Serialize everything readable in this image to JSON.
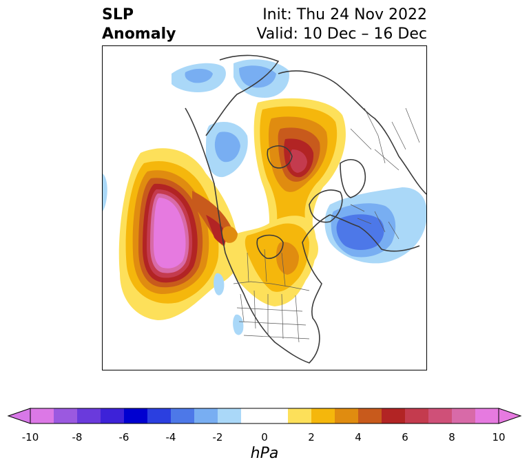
{
  "header": {
    "title_line1": "SLP",
    "title_line2": "Anomaly",
    "init_text": "Init: Thu 24 Nov 2022",
    "valid_text": "Valid: 10 Dec – 16 Dec"
  },
  "colorbar": {
    "unit": "hPa",
    "tick_labels": [
      "-10",
      "-8",
      "-6",
      "-4",
      "-2",
      "0",
      "2",
      "4",
      "6",
      "8",
      "10"
    ],
    "colors": [
      "#dc78e6",
      "#9b59e0",
      "#6a3adc",
      "#3d22d8",
      "#0000d0",
      "#2b3fe0",
      "#4d78e8",
      "#78aef2",
      "#aad8f8",
      "#ffffff",
      "#ffffff",
      "#fde05a",
      "#f5b70c",
      "#e08c10",
      "#c85a1c",
      "#b22424",
      "#c43b4e",
      "#cf5078",
      "#d86aa8",
      "#e67ae0"
    ],
    "under_color": "#d878e8",
    "over_color": "#e67ae0"
  },
  "map": {
    "projection": "polar stereographic",
    "fill_colors": {
      "pos1": "#fde05a",
      "pos2": "#f5b70c",
      "pos3": "#e08c10",
      "pos4": "#c85a1c",
      "pos5": "#b22424",
      "pos6": "#c43b4e",
      "pos7": "#d86aa8",
      "pos8": "#e67ae0",
      "neg1": "#aad8f8",
      "neg2": "#78aef2",
      "neg3": "#4d78e8"
    }
  }
}
